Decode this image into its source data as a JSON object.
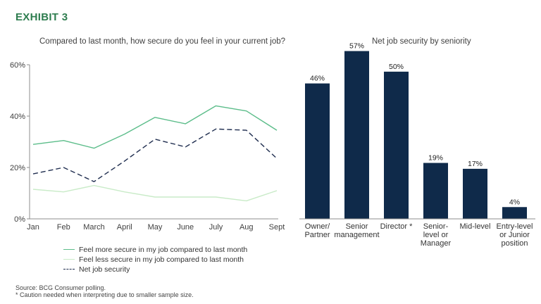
{
  "exhibit_label": "EXHIBIT 3",
  "colors": {
    "accent": "#2e7d4f",
    "more_secure": "#5cbd8a",
    "less_secure": "#c9ebc8",
    "net": "#1f2d4f",
    "bar": "#0f2a4a"
  },
  "chart_data": [
    {
      "type": "line",
      "title": "Compared to last month, how secure do you feel in your current job?",
      "categories": [
        "Jan",
        "Feb",
        "March",
        "April",
        "May",
        "June",
        "July",
        "Aug",
        "Sept"
      ],
      "ylim": [
        0,
        60
      ],
      "yticks": [
        "0%",
        "20%",
        "40%",
        "60%"
      ],
      "ytick_values": [
        0,
        20,
        40,
        60
      ],
      "series": [
        {
          "name": "Feel more secure in my job compared to last month",
          "style": "solid",
          "color": "#5cbd8a",
          "values": [
            29,
            30.5,
            27.5,
            33,
            39.5,
            37,
            44,
            42,
            34.5
          ]
        },
        {
          "name": "Feel less secure in my job compared to last month",
          "style": "solid",
          "color": "#c9ebc8",
          "values": [
            11.5,
            10.5,
            13,
            10.5,
            8.5,
            8.5,
            8.5,
            7,
            11
          ]
        },
        {
          "name": "Net job security",
          "style": "dashed",
          "color": "#1f2d4f",
          "values": [
            17.5,
            20,
            14.5,
            22.5,
            31,
            28,
            35,
            34.5,
            23.5
          ]
        }
      ],
      "legend_position": "bottom-left"
    },
    {
      "type": "bar",
      "title": "Net job security by seniority",
      "categories": [
        [
          "Owner/",
          "Partner"
        ],
        [
          "Senior",
          "management"
        ],
        [
          "Director *"
        ],
        [
          "Senior-",
          "level or",
          "Manager"
        ],
        [
          "Mid-level"
        ],
        [
          "Entry-level",
          "or Junior",
          "position"
        ]
      ],
      "values": [
        46,
        57,
        50,
        19,
        17,
        4
      ],
      "data_labels": [
        "46%",
        "57%",
        "50%",
        "19%",
        "17%",
        "4%"
      ],
      "ylim": [
        0,
        60
      ]
    }
  ],
  "footnotes": {
    "source": "Source: BCG Consumer polling.",
    "caution": "* Caution needed when interpreting due to smaller sample size."
  }
}
